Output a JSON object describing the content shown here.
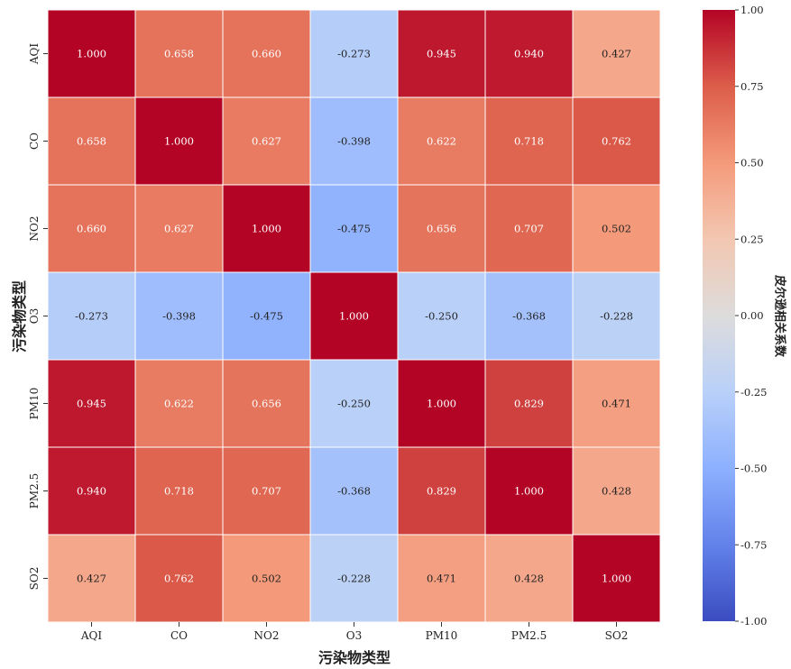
{
  "chart_data": {
    "type": "heatmap",
    "title": "",
    "xlabel": "污染物类型",
    "ylabel": "污染物类型",
    "colorbar_label": "皮尔逊相关系数",
    "colormap": "coolwarm",
    "vmin": -1.0,
    "vmax": 1.0,
    "colorbar_ticks": [
      1.0,
      0.75,
      0.5,
      0.25,
      0.0,
      -0.25,
      -0.5,
      -0.75,
      -1.0
    ],
    "colorbar_tick_labels": [
      "1.00",
      "0.75",
      "0.50",
      "0.25",
      "0.00",
      "-0.25",
      "-0.50",
      "-0.75",
      "-1.00"
    ],
    "x_categories": [
      "AQI",
      "CO",
      "NO2",
      "O3",
      "PM10",
      "PM2.5",
      "SO2"
    ],
    "y_categories": [
      "AQI",
      "CO",
      "NO2",
      "O3",
      "PM10",
      "PM2.5",
      "SO2"
    ],
    "values": [
      [
        1.0,
        0.658,
        0.66,
        -0.273,
        0.945,
        0.94,
        0.427
      ],
      [
        0.658,
        1.0,
        0.627,
        -0.398,
        0.622,
        0.718,
        0.762
      ],
      [
        0.66,
        0.627,
        1.0,
        -0.475,
        0.656,
        0.707,
        0.502
      ],
      [
        -0.273,
        -0.398,
        -0.475,
        1.0,
        -0.25,
        -0.368,
        -0.228
      ],
      [
        0.945,
        0.622,
        0.656,
        -0.25,
        1.0,
        0.829,
        0.471
      ],
      [
        0.94,
        0.718,
        0.707,
        -0.368,
        0.829,
        1.0,
        0.428
      ],
      [
        0.427,
        0.762,
        0.502,
        -0.228,
        0.471,
        0.428,
        1.0
      ]
    ],
    "value_labels": [
      [
        "1.000",
        "0.658",
        "0.660",
        "-0.273",
        "0.945",
        "0.940",
        "0.427"
      ],
      [
        "0.658",
        "1.000",
        "0.627",
        "-0.398",
        "0.622",
        "0.718",
        "0.762"
      ],
      [
        "0.660",
        "0.627",
        "1.000",
        "-0.475",
        "0.656",
        "0.707",
        "0.502"
      ],
      [
        "-0.273",
        "-0.398",
        "-0.475",
        "1.000",
        "-0.250",
        "-0.368",
        "-0.228"
      ],
      [
        "0.945",
        "0.622",
        "0.656",
        "-0.250",
        "1.000",
        "0.829",
        "0.471"
      ],
      [
        "0.940",
        "0.718",
        "0.707",
        "-0.368",
        "0.829",
        "1.000",
        "0.428"
      ],
      [
        "0.427",
        "0.762",
        "0.502",
        "-0.228",
        "0.471",
        "0.428",
        "1.000"
      ]
    ]
  }
}
